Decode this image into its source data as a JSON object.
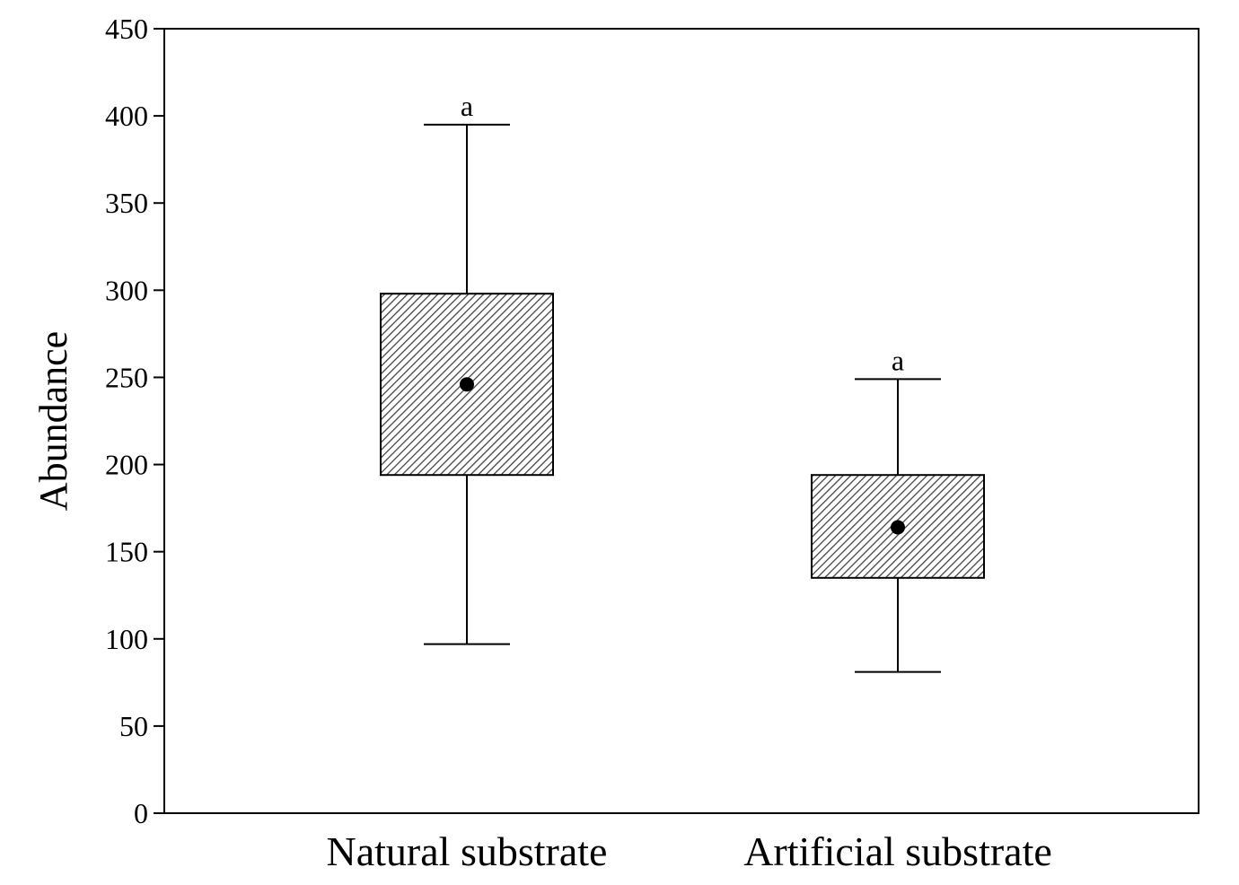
{
  "chart_data": {
    "type": "boxplot",
    "title": "",
    "xlabel": "",
    "ylabel": "Abundance",
    "ylim": [
      0,
      450
    ],
    "yticks": [
      0,
      50,
      100,
      150,
      200,
      250,
      300,
      350,
      400,
      450
    ],
    "grid": false,
    "legend": "none",
    "box_fill": "#555555",
    "box_pattern": "diagonal-hatch",
    "categories": [
      "Natural substrate",
      "Artificial substrate"
    ],
    "boxes": [
      {
        "category": "Natural substrate",
        "whisker_low": 97,
        "q1": 194,
        "mean": 246,
        "q3": 298,
        "whisker_high": 395,
        "annotation": "a"
      },
      {
        "category": "Artificial substrate",
        "whisker_low": 81,
        "q1": 135,
        "mean": 164,
        "q3": 194,
        "whisker_high": 249,
        "annotation": "a"
      }
    ]
  }
}
